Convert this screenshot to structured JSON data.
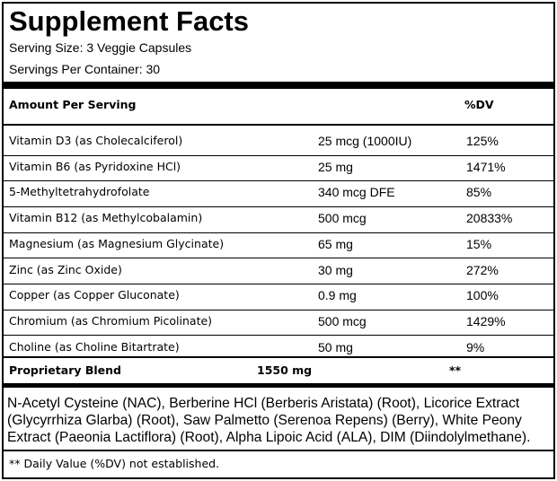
{
  "header": {
    "title": "Supplement Facts",
    "serving_size": "Serving Size: 3 Veggie Capsules",
    "servings_per_container": "Servings Per Container: 30"
  },
  "table": {
    "header": [
      "Amount Per Serving",
      "%DV"
    ],
    "rows": [
      [
        "Vitamin D3 (as Cholecalciferol)",
        "25 mcg (1000IU)",
        "125%"
      ],
      [
        "Vitamin B6 (as Pyridoxine HCl)",
        "25 mg",
        "1471%"
      ],
      [
        "5-Methyltetrahydrofolate",
        "340 mcg DFE",
        "85%"
      ],
      [
        "Vitamin B12 (as Methylcobalamin)",
        "500 mcg",
        "20833%"
      ],
      [
        "Magnesium (as Magnesium Glycinate)",
        "65 mg",
        "15%"
      ],
      [
        "Zinc (as Zinc Oxide)",
        "30 mg",
        "272%"
      ],
      [
        "Copper (as Copper Gluconate)",
        "0.9 mg",
        "100%"
      ],
      [
        "Chromium (as Chromium Picolinate)",
        "500 mcg",
        "1429%"
      ],
      [
        "Choline (as Choline Bitartrate)",
        "50 mg",
        "9%"
      ]
    ]
  },
  "proprietary_blend": {
    "name": "Proprietary Blend",
    "amount": "1550 mg",
    "dv": "**"
  },
  "ingredients": "N-Acetyl Cysteine (NAC), Berberine HCl (Berberis Aristata) (Root), Licorice Extract (Glycyrrhiza Glarba) (Root), Saw Palmetto (Serenoa Repens) (Berry), White Peony Extract (Paeonia Lactiflora) (Root), Alpha Lipoic Acid (ALA), DIM (Diindolylmethane).",
  "footnote": "** Daily Value (%DV) not established."
}
